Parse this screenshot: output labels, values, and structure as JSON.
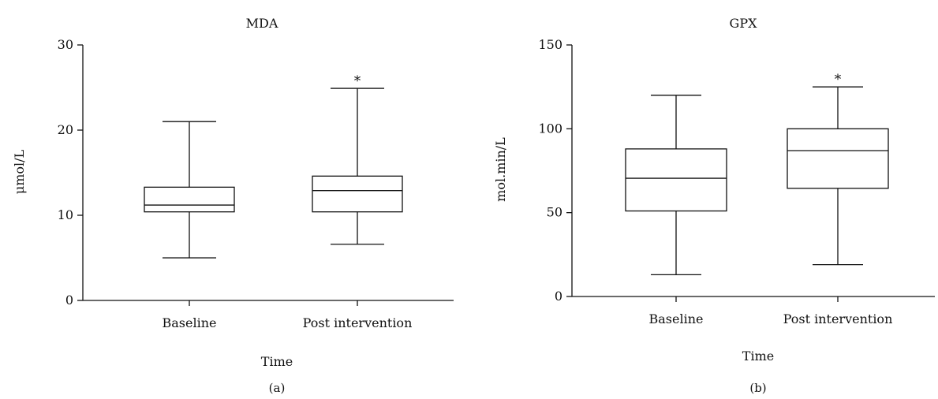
{
  "chart_data": [
    {
      "type": "box",
      "panel_label": "(a)",
      "title": "MDA",
      "xlabel": "Time",
      "ylabel": "μmol/L",
      "ylim": [
        0,
        30
      ],
      "yticks": [
        0,
        10,
        20,
        30
      ],
      "categories": [
        "Baseline",
        "Post intervention"
      ],
      "boxes": [
        {
          "category": "Baseline",
          "min": 5,
          "q1": 10.4,
          "median": 11.2,
          "q3": 13.3,
          "max": 21,
          "annotation": ""
        },
        {
          "category": "Post intervention",
          "min": 6.6,
          "q1": 10.4,
          "median": 12.9,
          "q3": 14.6,
          "max": 24.9,
          "annotation": "*"
        }
      ]
    },
    {
      "type": "box",
      "panel_label": "(b)",
      "title": "GPX",
      "xlabel": "Time",
      "ylabel": "mol.min/L",
      "ylim": [
        0,
        150
      ],
      "yticks": [
        0,
        50,
        100,
        150
      ],
      "categories": [
        "Baseline",
        "Post intervention"
      ],
      "boxes": [
        {
          "category": "Baseline",
          "min": 13,
          "q1": 51,
          "median": 70.5,
          "q3": 88,
          "max": 120,
          "annotation": ""
        },
        {
          "category": "Post intervention",
          "min": 19,
          "q1": 64.5,
          "median": 87,
          "q3": 100,
          "max": 125,
          "annotation": "*"
        }
      ]
    }
  ]
}
